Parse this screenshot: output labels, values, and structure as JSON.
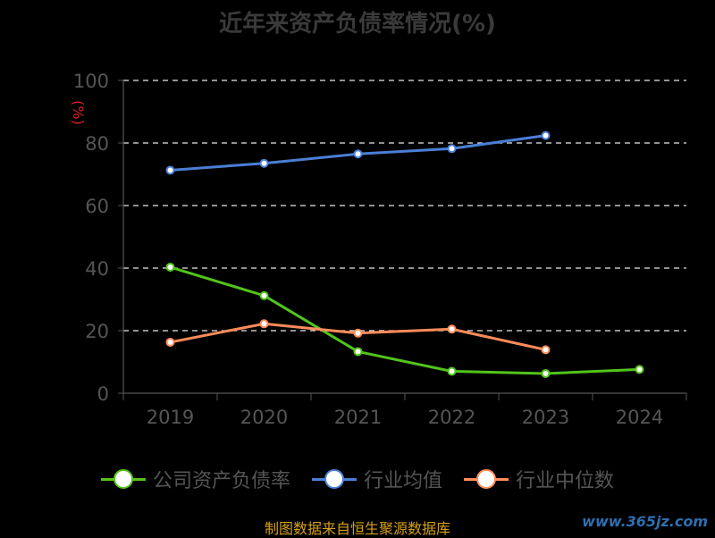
{
  "chart_data": {
    "type": "line",
    "title": "近年来资产负债率情况(%)",
    "ylabel": "(%)",
    "xlabel": "",
    "categories": [
      "2019",
      "2020",
      "2021",
      "2022",
      "2023",
      "2024"
    ],
    "ylim": [
      0,
      100
    ],
    "yticks": [
      0,
      20,
      40,
      60,
      80,
      100
    ],
    "grid": true,
    "legend_position": "bottom",
    "series": [
      {
        "name": "公司资产负债率",
        "color": "#52c41a",
        "values": [
          40.3,
          31.2,
          13.3,
          7.0,
          6.3,
          7.6
        ]
      },
      {
        "name": "行业均值",
        "color": "#4a7fd6",
        "values": [
          71.3,
          73.5,
          76.5,
          78.2,
          82.4,
          null
        ]
      },
      {
        "name": "行业中位数",
        "color": "#ff8c5a",
        "values": [
          16.3,
          22.2,
          19.2,
          20.5,
          13.9,
          null
        ]
      }
    ]
  },
  "footer": {
    "source": "制图数据来自恒生聚源数据库",
    "watermark": "www.365jz.com"
  }
}
